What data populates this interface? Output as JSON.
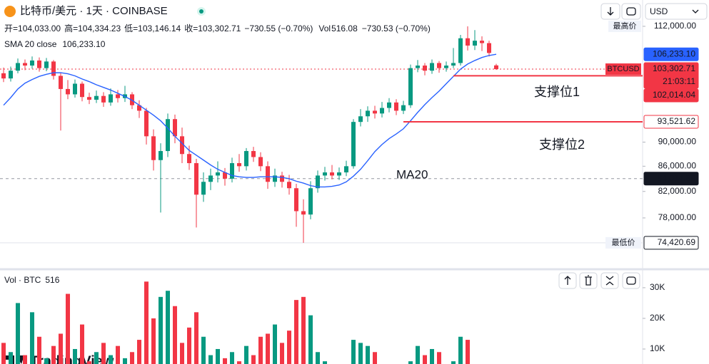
{
  "header": {
    "title": "比特币/美元 · 1天 · COINBASE",
    "ohlc": [
      {
        "k": "开=",
        "v": "104,033.00"
      },
      {
        "k": "高=",
        "v": "104,334.23"
      },
      {
        "k": "低=",
        "v": "103,146.14"
      },
      {
        "k": "收=",
        "v": "103,302.71"
      }
    ],
    "change": "−730.55 (−0.70%)",
    "vol_key": "Vol",
    "vol_value": "516.08",
    "vol_change": "−730.53 (−0.70%)",
    "sma_name": "SMA 20 close",
    "sma_value": "106,233.10",
    "currency": "USD",
    "vol_pane_title": "Vol · BTC",
    "vol_pane_value": "516",
    "logo": "TradingView"
  },
  "chart_data": [
    {
      "type": "candlestick",
      "log": true,
      "grid": false,
      "up_color": "#089981",
      "down_color": "#f23645",
      "ylim": [
        71080,
        113050
      ],
      "yticks": [
        {
          "value": 112000,
          "label": "112,000.00"
        },
        {
          "value": 90000,
          "label": "90,000.00"
        },
        {
          "value": 86000,
          "label": "86,000.00"
        },
        {
          "value": 82000,
          "label": "82,000.00"
        },
        {
          "value": 78000,
          "label": "78,000.00"
        }
      ],
      "high_tag": "最高价",
      "open": [
        102500,
        101500,
        103000,
        104500,
        104000,
        105000,
        103500,
        104800,
        102000,
        99500,
        98500,
        100500,
        98000,
        97500,
        98200,
        97000,
        98500,
        97800,
        98500,
        96500,
        95500,
        91000,
        87000,
        88500,
        94000,
        91000,
        88000,
        86500,
        81500,
        83500,
        84500,
        85000,
        84000,
        86500,
        86000,
        88500,
        87500,
        86000,
        83500,
        84500,
        83500,
        82500,
        79000,
        78500,
        82500,
        84500,
        85000,
        84500,
        85000,
        86000,
        93500,
        94500,
        95500,
        95000,
        96000,
        97000,
        95500,
        96500,
        103500,
        104000,
        103000,
        104500,
        103500,
        104000,
        104500,
        109500,
        108000,
        109000,
        108500,
        104033
      ],
      "high": [
        103600,
        103800,
        105400,
        105200,
        105800,
        105600,
        105500,
        105100,
        102600,
        101200,
        101300,
        100900,
        98800,
        99200,
        98900,
        99600,
        99300,
        100100,
        98900,
        97400,
        96000,
        92200,
        89800,
        95000,
        94800,
        92500,
        89400,
        87200,
        85000,
        85600,
        86800,
        85700,
        87400,
        88000,
        89000,
        89200,
        88300,
        86800,
        85600,
        85100,
        84600,
        83200,
        80800,
        83600,
        85300,
        85900,
        86200,
        85800,
        86900,
        94000,
        95800,
        96300,
        96400,
        97100,
        97800,
        97600,
        97300,
        104200,
        105100,
        104500,
        105200,
        104900,
        104800,
        107500,
        110200,
        112000,
        111200,
        109900,
        109000,
        104334.23
      ],
      "low": [
        100800,
        100900,
        102500,
        103100,
        103400,
        102800,
        102900,
        101300,
        92000,
        97600,
        97900,
        97200,
        96700,
        96900,
        96200,
        96400,
        97000,
        97100,
        95800,
        94200,
        89600,
        85300,
        78800,
        87500,
        89800,
        86500,
        85400,
        76600,
        80400,
        82200,
        83400,
        82900,
        83400,
        85100,
        85300,
        86700,
        85200,
        82400,
        82700,
        82600,
        81500,
        76700,
        74420.69,
        77800,
        81800,
        83700,
        83900,
        83800,
        84400,
        85600,
        92700,
        93500,
        94100,
        94300,
        95200,
        94700,
        94900,
        96000,
        102700,
        102100,
        102400,
        102600,
        102800,
        103500,
        104000,
        107000,
        107100,
        106900,
        105800,
        103146.14
      ],
      "close": [
        101500,
        103000,
        104500,
        104000,
        105000,
        103500,
        104800,
        102000,
        99500,
        98500,
        100500,
        98000,
        97500,
        98200,
        97000,
        98500,
        97800,
        98500,
        96500,
        95500,
        91000,
        87000,
        88500,
        94000,
        91000,
        88000,
        86500,
        81500,
        83500,
        84500,
        85000,
        84000,
        86500,
        86000,
        88500,
        87500,
        86000,
        83500,
        84500,
        83500,
        82500,
        79000,
        78500,
        82500,
        84500,
        85000,
        84500,
        85000,
        86000,
        93500,
        94500,
        95500,
        95000,
        96000,
        97000,
        95500,
        96500,
        103500,
        104000,
        103000,
        104500,
        103500,
        104000,
        104500,
        109500,
        108000,
        109000,
        108500,
        106500,
        103302.71
      ],
      "sma": {
        "name": "SMA 20 close",
        "color": "#2962ff",
        "values": [
          96500,
          97900,
          99500,
          100600,
          101300,
          101900,
          102300,
          102600,
          102600,
          102400,
          102000,
          101400,
          100900,
          100300,
          99800,
          99300,
          98700,
          98100,
          97400,
          96500,
          95600,
          94700,
          93700,
          92400,
          91000,
          89800,
          88600,
          87800,
          87000,
          86200,
          85500,
          85000,
          84500,
          84300,
          84200,
          84200,
          84300,
          84300,
          84300,
          84200,
          84000,
          83600,
          83300,
          82900,
          82700,
          82700,
          82800,
          83000,
          83500,
          84400,
          85500,
          86900,
          88400,
          89600,
          90600,
          91400,
          92300,
          93700,
          95200,
          96600,
          97900,
          99100,
          100500,
          101900,
          103300,
          104300,
          105000,
          105600,
          106000,
          106233.1
        ]
      },
      "price_labels": [
        {
          "value": 106233.1,
          "label": "106,233.10",
          "bg": "#2962ff",
          "fg": "#ffffff"
        },
        {
          "value": 103302.71,
          "label": "103,302.71",
          "bg": "#f23645",
          "fg": "#ffffff",
          "tag": "BTCUSD",
          "sub": "21:03:11",
          "line_style": "dotted"
        },
        {
          "value": 102014.04,
          "label": "102,014.04",
          "bg": "#f23645",
          "fg": "#ffffff"
        },
        {
          "value": 93521.62,
          "label": "93,521.62",
          "bg": "#ffffff",
          "fg": "#f23645"
        },
        {
          "value": 84014.89,
          "label": "84,014.89",
          "bg": "#131722",
          "fg": "#ffffff",
          "line_style": "dashed"
        },
        {
          "value": 74420.69,
          "label": "74,420.69",
          "bg": "#ffffff",
          "fg": "#131722",
          "tag": "最低价",
          "line_style": "faint"
        }
      ],
      "drawings": [
        {
          "text": "支撑位1",
          "value": 102014.04,
          "start": 63,
          "color": "#f23645"
        },
        {
          "text": "支撑位2",
          "value": 93521.62,
          "start": 56,
          "color": "#f23645"
        }
      ],
      "annotations": [
        {
          "text": "MA20",
          "color": "#f23645"
        }
      ]
    },
    {
      "type": "bar",
      "name": "Vol",
      "ylim": [
        0,
        33000
      ],
      "yticks": [
        {
          "value": 30000,
          "label": "30K"
        },
        {
          "value": 20000,
          "label": "20K"
        },
        {
          "value": 10000,
          "label": "10K"
        }
      ],
      "values": [
        12000,
        9000,
        25000,
        8000,
        22000,
        14000,
        7000,
        11000,
        15000,
        28000,
        10000,
        18000,
        6000,
        9000,
        12000,
        8000,
        11000,
        7000,
        9000,
        13000,
        32000,
        20000,
        27000,
        29000,
        24000,
        12000,
        17000,
        22000,
        14000,
        8000,
        10000,
        7000,
        9000,
        6000,
        11000,
        8000,
        14000,
        15000,
        18000,
        12000,
        16000,
        26000,
        27000,
        21000,
        9000,
        6000,
        4000,
        3000,
        5000,
        13000,
        12000,
        11000,
        9000,
        4000,
        3000,
        2500,
        4000,
        6000,
        11000,
        8000,
        10000,
        9000,
        4000,
        6000,
        14000,
        13000,
        5000,
        4000,
        4500,
        516.08
      ]
    }
  ]
}
